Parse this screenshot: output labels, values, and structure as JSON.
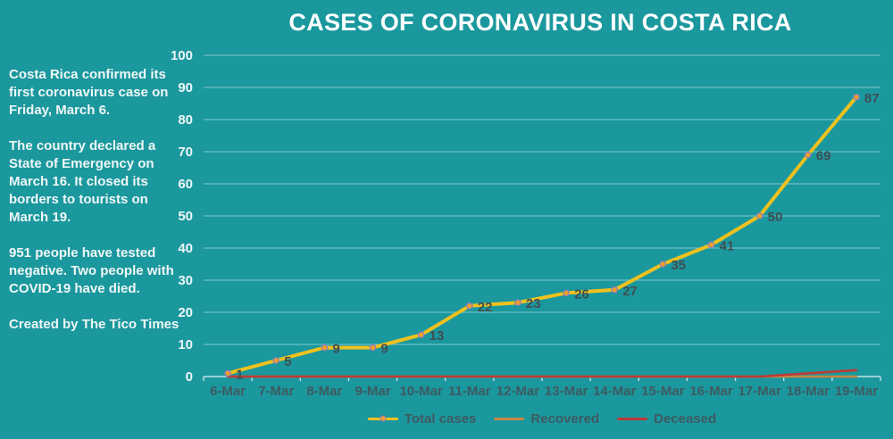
{
  "title": "CASES OF CORONAVIRUS IN COSTA RICA",
  "sidebar": {
    "paragraphs": [
      "Costa Rica confirmed its first coronavirus case on Friday, March 6.",
      "The country declared a State of Emergency on March 16. It closed its borders to tourists on March 19.",
      "951 people have tested negative. Two people with COVID-19 have died.",
      "Created by The Tico Times"
    ]
  },
  "legend": {
    "items": [
      {
        "label": "Total cases"
      },
      {
        "label": "Recovered"
      },
      {
        "label": "Deceased"
      }
    ]
  },
  "colors": {
    "background": "#1A989E",
    "title_text": "#FFFFFF",
    "sidebar_text": "#F0F6F6",
    "total_cases_line": "#F0C11E",
    "recovered_line": "#C98643",
    "deceased_line": "#BE3934",
    "marker_fill": "#EE9F2C",
    "marker_ring": "#8C7BC0",
    "axis": "#BFE3E6",
    "gridline": "rgba(235,250,251,0.5)",
    "y_label": "#EFF6F7",
    "x_label": "#3E5A60",
    "data_label": "#3F4E53",
    "legend_text": "#3E5A60"
  },
  "chart_data": {
    "type": "line",
    "title": "CASES OF CORONAVIRUS IN COSTA RICA",
    "categories": [
      "6-Mar",
      "7-Mar",
      "8-Mar",
      "9-Mar",
      "10-Mar",
      "11-Mar",
      "12-Mar",
      "13-Mar",
      "14-Mar",
      "15-Mar",
      "16-Mar",
      "17-Mar",
      "18-Mar",
      "19-Mar"
    ],
    "series": [
      {
        "name": "Total cases",
        "color": "#F0C11E",
        "markers": true,
        "data_labels": true,
        "values": [
          1,
          5,
          9,
          9,
          13,
          22,
          23,
          26,
          27,
          35,
          41,
          50,
          69,
          87
        ]
      },
      {
        "name": "Recovered",
        "color": "#C98643",
        "markers": false,
        "data_labels": false,
        "values": [
          0,
          0,
          0,
          0,
          0,
          0,
          0,
          0,
          0,
          0,
          0,
          0,
          0,
          0
        ]
      },
      {
        "name": "Deceased",
        "color": "#BE3934",
        "markers": false,
        "data_labels": false,
        "values": [
          0,
          0,
          0,
          0,
          0,
          0,
          0,
          0,
          0,
          0,
          0,
          0,
          1,
          2
        ]
      }
    ],
    "xlabel": "",
    "ylabel": "",
    "ylim": [
      0,
      100
    ],
    "y_ticks": [
      0,
      10,
      20,
      30,
      40,
      50,
      60,
      70,
      80,
      90,
      100
    ],
    "grid": true,
    "legend_position": "bottom"
  }
}
